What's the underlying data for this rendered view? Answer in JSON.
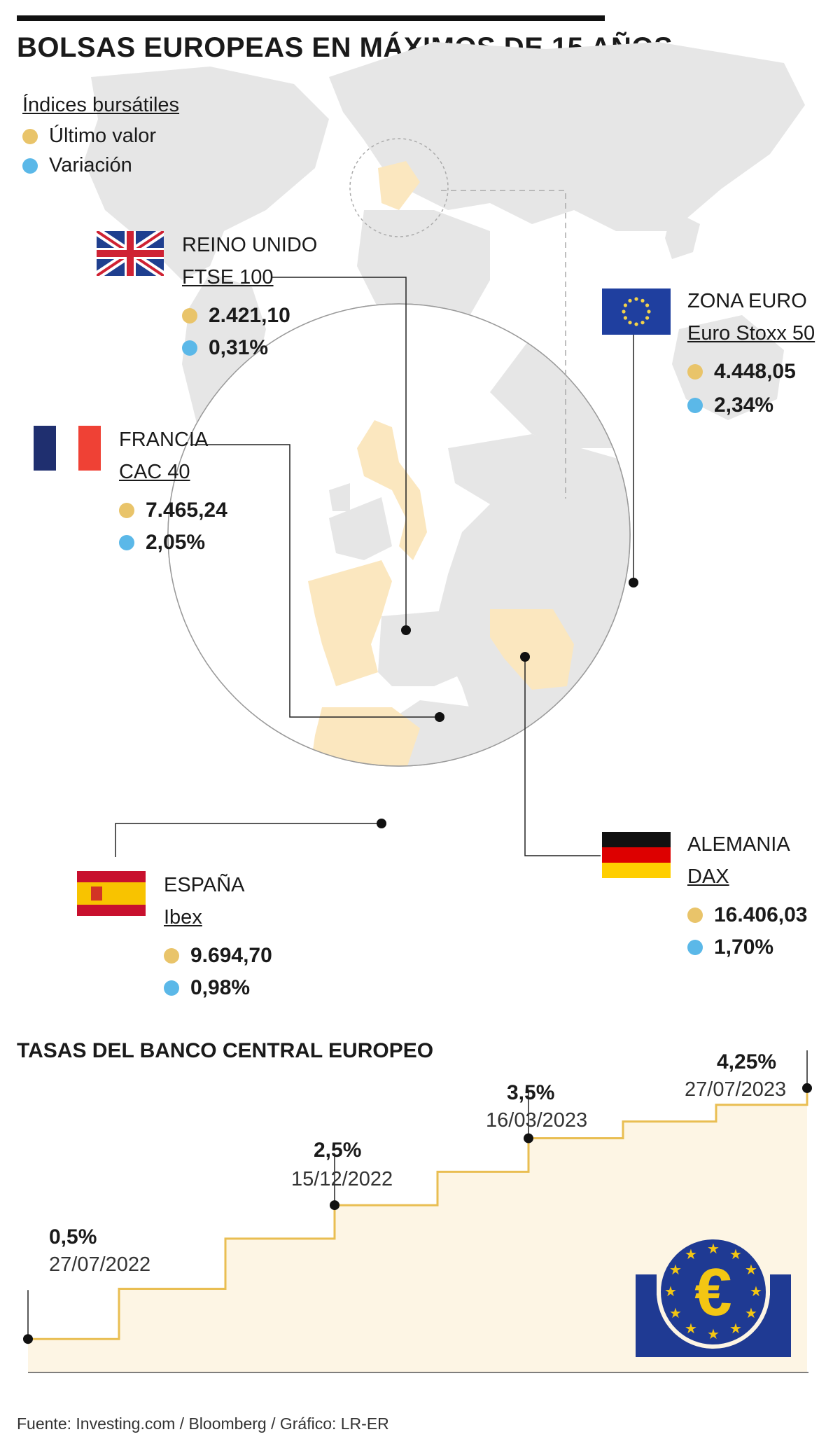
{
  "header": {
    "title": "BOLSAS EUROPEAS EN MÁXIMOS DE 15 AÑOS"
  },
  "legend": {
    "title": "Índices bursátiles",
    "last_value": "Último valor",
    "variation": "Variación"
  },
  "colors": {
    "last_value": "#e9c46a",
    "variation": "#5bb8e8",
    "land": "#e4e4e4",
    "highlight": "#fbe7bf",
    "step_line": "#e9be52",
    "step_fill": "#fdf5e4",
    "ecb_blue": "#1f3a93"
  },
  "markets": [
    {
      "country": "REINO UNIDO",
      "index": "FTSE 100",
      "last_value": "2.421,10",
      "variation": "0,31%",
      "flag": "uk-flag-icon"
    },
    {
      "country": "ZONA EURO",
      "index": "Euro Stoxx 50",
      "last_value": "4.448,05",
      "variation": "2,34%",
      "flag": "eu-flag-icon"
    },
    {
      "country": "FRANCIA",
      "index": "CAC 40",
      "last_value": "7.465,24",
      "variation": "2,05%",
      "flag": "france-flag-icon"
    },
    {
      "country": "ESPAÑA",
      "index": "Ibex",
      "last_value": "9.694,70",
      "variation": "0,98%",
      "flag": "spain-flag-icon"
    },
    {
      "country": "ALEMANIA",
      "index": "DAX",
      "last_value": "16.406,03",
      "variation": "1,70%",
      "flag": "germany-flag-icon"
    }
  ],
  "rates": {
    "title": "TASAS DEL BANCO CENTRAL EUROPEO",
    "points": [
      {
        "rate": "0,5%",
        "date": "27/07/2022"
      },
      {
        "rate": "2,5%",
        "date": "15/12/2022"
      },
      {
        "rate": "3,5%",
        "date": "16/03/2023"
      },
      {
        "rate": "4,25%",
        "date": "27/07/2023"
      }
    ]
  },
  "chart_data": {
    "type": "line",
    "title": "TASAS DEL BANCO CENTRAL EUROPEO",
    "xlabel": "",
    "ylabel": "",
    "step": true,
    "x": [
      "27/07/2022",
      "15/12/2022",
      "16/03/2023",
      "27/07/2023"
    ],
    "series": [
      {
        "values": [
          0.5,
          2.5,
          3.5,
          4.25
        ]
      }
    ],
    "ylim": [
      0,
      4.5
    ],
    "grid": false,
    "legend": "none"
  },
  "footer": {
    "source": "Fuente: Investing.com / Bloomberg / Gráfico: LR-ER"
  }
}
